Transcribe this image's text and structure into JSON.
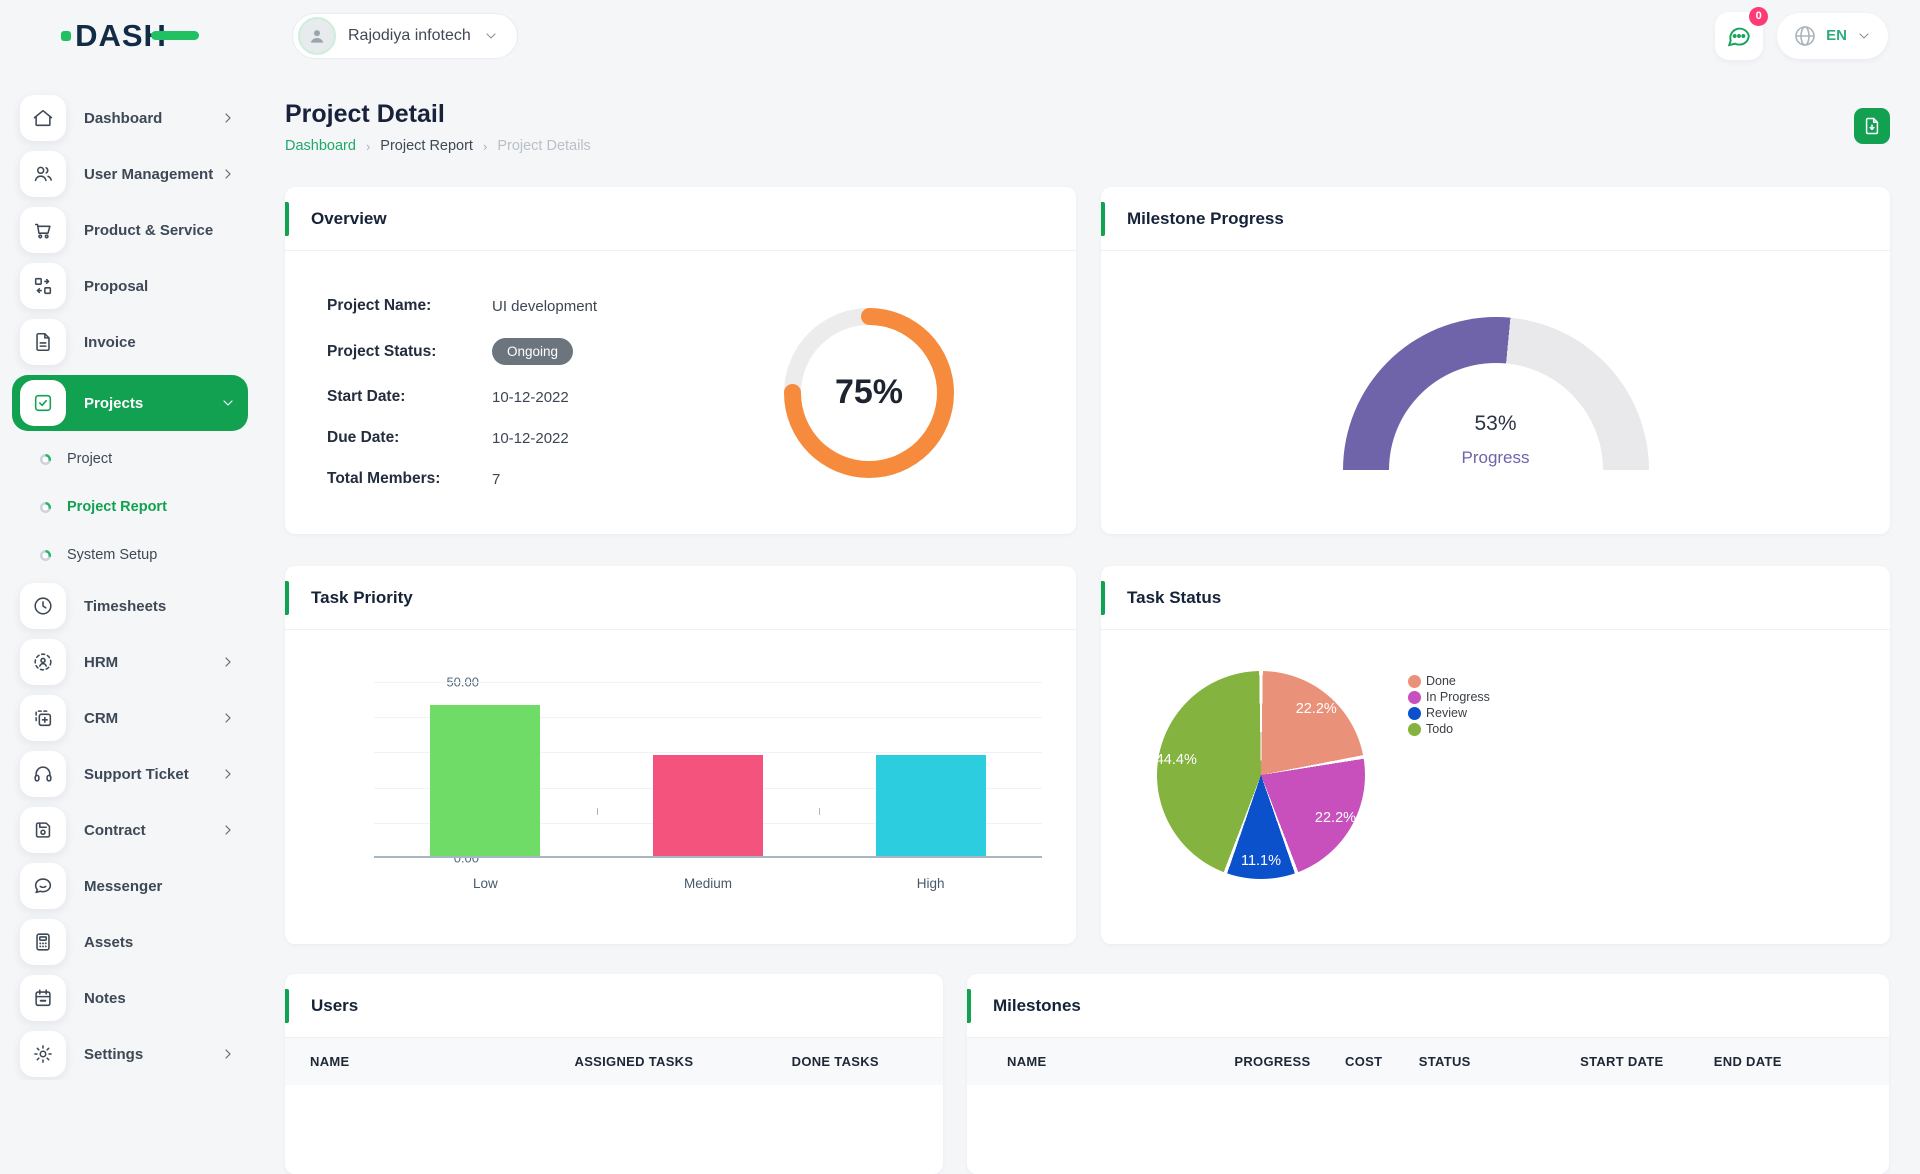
{
  "brand": {
    "name": "DASH"
  },
  "topbar": {
    "workspace_name": "Rajodiya infotech",
    "notification_count": "0",
    "language_code": "EN"
  },
  "page": {
    "title": "Project Detail",
    "breadcrumb": [
      "Dashboard",
      "Project Report",
      "Project Details"
    ]
  },
  "sidebar": {
    "items": [
      {
        "label": "Dashboard",
        "icon": "home-icon",
        "chevron": "right",
        "active": false
      },
      {
        "label": "User Management",
        "icon": "users-icon",
        "chevron": "right",
        "active": false
      },
      {
        "label": "Product & Service",
        "icon": "cart-icon",
        "chevron": null,
        "active": false
      },
      {
        "label": "Proposal",
        "icon": "proposal-icon",
        "chevron": null,
        "active": false
      },
      {
        "label": "Invoice",
        "icon": "invoice-icon",
        "chevron": null,
        "active": false
      },
      {
        "label": "Projects",
        "icon": "check-square-icon",
        "chevron": "down",
        "active": true,
        "children": [
          {
            "label": "Project",
            "active": false
          },
          {
            "label": "Project Report",
            "active": true
          },
          {
            "label": "System Setup",
            "active": false
          }
        ]
      },
      {
        "label": "Timesheets",
        "icon": "clock-icon",
        "chevron": null,
        "active": false
      },
      {
        "label": "HRM",
        "icon": "hrm-icon",
        "chevron": "right",
        "active": false
      },
      {
        "label": "CRM",
        "icon": "crm-icon",
        "chevron": "right",
        "active": false
      },
      {
        "label": "Support Ticket",
        "icon": "headset-icon",
        "chevron": "right",
        "active": false
      },
      {
        "label": "Contract",
        "icon": "contract-icon",
        "chevron": "right",
        "active": false
      },
      {
        "label": "Messenger",
        "icon": "message-icon",
        "chevron": null,
        "active": false
      },
      {
        "label": "Assets",
        "icon": "calculator-icon",
        "chevron": null,
        "active": false
      },
      {
        "label": "Notes",
        "icon": "calendar-icon",
        "chevron": null,
        "active": false
      },
      {
        "label": "Settings",
        "icon": "gear-icon",
        "chevron": "right",
        "active": false
      }
    ]
  },
  "overview": {
    "title": "Overview",
    "fields": [
      {
        "label": "Project Name:",
        "value": "UI development",
        "type": "text"
      },
      {
        "label": "Project Status:",
        "value": "Ongoing",
        "type": "badge"
      },
      {
        "label": "Start Date:",
        "value": "10-12-2022",
        "type": "text"
      },
      {
        "label": "Due Date:",
        "value": "10-12-2022",
        "type": "text"
      },
      {
        "label": "Total Members:",
        "value": "7",
        "type": "text"
      }
    ]
  },
  "milestone_card": {
    "title": "Milestone Progress"
  },
  "task_priority_card": {
    "title": "Task Priority"
  },
  "task_status_card": {
    "title": "Task Status"
  },
  "chart_data": [
    {
      "id": "project_completion",
      "type": "donut",
      "center_label": "75%",
      "percent": 75,
      "color": "#f68b3d",
      "track_color": "#ececec"
    },
    {
      "id": "milestone_gauge",
      "type": "gauge",
      "percent": 53,
      "center_label": "53%",
      "sub_label": "Progress",
      "color": "#6f63aa",
      "track_color": "#e9e9ec"
    },
    {
      "id": "task_priority",
      "type": "bar",
      "categories": [
        "Low",
        "Medium",
        "High"
      ],
      "values": [
        42.86,
        28.57,
        28.57
      ],
      "colors": [
        "#6edc66",
        "#f4537e",
        "#2dcde0"
      ],
      "ylim": [
        0,
        50
      ],
      "yticks": [
        "0.00",
        "10.00",
        "20.00",
        "30.00",
        "40.00",
        "50.00"
      ],
      "grid": true,
      "legend": false
    },
    {
      "id": "task_status",
      "type": "pie",
      "labels": [
        "Done",
        "In Progress",
        "Review",
        "Todo"
      ],
      "values": [
        22.2,
        22.2,
        11.1,
        44.4
      ],
      "slice_labels": [
        "22.2%",
        "22.2%",
        "11.1%",
        "44.4%"
      ],
      "colors": [
        "#ea9179",
        "#c750bd",
        "#0b51cc",
        "#84b33f"
      ],
      "legend_position": "right"
    }
  ],
  "users_table": {
    "title": "Users",
    "columns": [
      "NAME",
      "ASSIGNED TASKS",
      "DONE TASKS"
    ]
  },
  "milestones_table": {
    "title": "Milestones",
    "columns": [
      "NAME",
      "PROGRESS",
      "COST",
      "STATUS",
      "START DATE",
      "END DATE"
    ]
  }
}
